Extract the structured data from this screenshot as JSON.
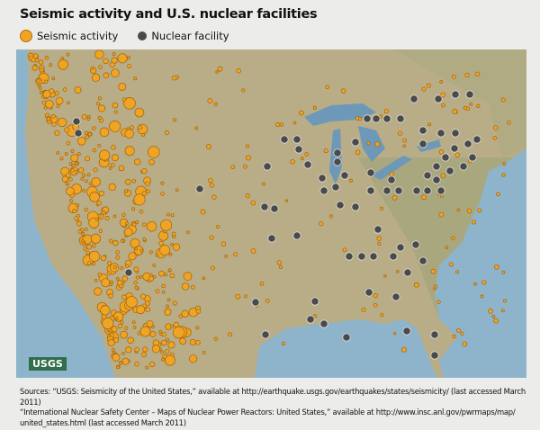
{
  "title": "Seismic activity and U.S. nuclear facilities",
  "legend": [
    {
      "label": "Seismic activity",
      "color": "#f0a424"
    },
    {
      "label": "Nuclear facility",
      "color": "#4a4a4a"
    }
  ],
  "map": {
    "logo": "USGS",
    "land_color": "#b8ad86",
    "water_color": "#8db4cb"
  },
  "sources": [
    "Sources: “USGS: Seismicity of the United States,” available at http://earthquake.usgs.gov/earthquakes/states/seismicity/ (last accessed March 2011)",
    "“International Nuclear Safety Center – Maps of Nuclear Power Reactors: United States,” available at http://www.insc.anl.gov/pwrmaps/map/",
    "united_states.html (last accessed March 2011)"
  ]
}
